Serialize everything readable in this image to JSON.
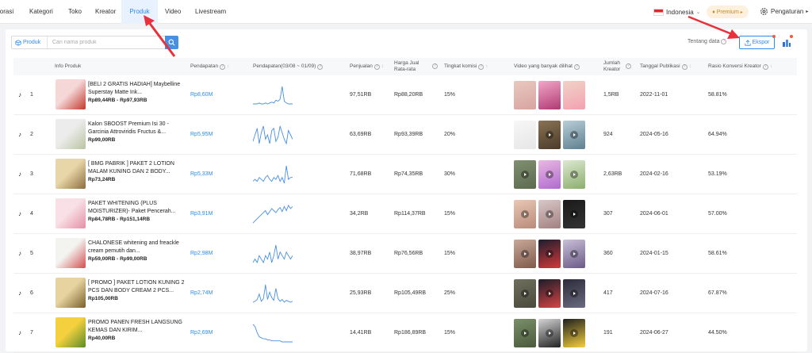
{
  "nav": {
    "items": [
      "lorasi",
      "Kategori",
      "Toko",
      "Kreator",
      "Produk",
      "Video",
      "Livestream"
    ],
    "active": "Produk"
  },
  "topright": {
    "language": "Indonesia",
    "premium": "Premium",
    "settings": "Pengaturan"
  },
  "toolbar": {
    "search_type": "Produk",
    "search_placeholder": "Cari nama produk",
    "about_data": "Tentang data",
    "export": "Ekspor"
  },
  "table": {
    "columns": {
      "info": "Info Produk",
      "revenue": "Pendapatan",
      "revenue_trend": "Pendapatan(03/08 ~ 01/09)",
      "sales": "Penjualan",
      "avg_price_1": "Harga Jual",
      "avg_price_2": "Rata-rata",
      "commission": "Tingkat komisi",
      "videos": "Video yang banyak dilihat",
      "creators_1": "Jumlah",
      "creators_2": "Kreator",
      "publish_date": "Tanggal Publikasi",
      "conversion": "Rasio Konversi Kreator"
    },
    "rows": [
      {
        "rank": "1",
        "title": "[BELI 2 GRATIS HADIAH] Maybelline Superstay Matte Ink...",
        "price_range": "Rp89,44RB - Rp97,93RB",
        "revenue": "Rp8,60M",
        "sales": "97,51RB",
        "avg_price": "Rp88,20RB",
        "commission": "15%",
        "creators": "1,5RB",
        "publish_date": "2022-11-01",
        "conversion": "58.81%",
        "trend": [
          5,
          5,
          5,
          6,
          5,
          5,
          6,
          5,
          6,
          7,
          6,
          9,
          8,
          10,
          24,
          8,
          6,
          5,
          5,
          5
        ]
      },
      {
        "rank": "2",
        "title": "Kalon SBOOST Premium Isi 30 - Garcinia Attroviridis Fructus &...",
        "price_range": "Rp99,00RB",
        "revenue": "Rp5,95M",
        "sales": "63,69RB",
        "avg_price": "Rp93,39RB",
        "commission": "20%",
        "creators": "924",
        "publish_date": "2024-05-16",
        "conversion": "64.94%",
        "trend": [
          8,
          14,
          20,
          6,
          16,
          22,
          10,
          14,
          6,
          18,
          20,
          8,
          12,
          22,
          16,
          10,
          6,
          18,
          14,
          10
        ]
      },
      {
        "rank": "3",
        "title": "[ BMG PABRIK ] PAKET 2 LOTION MALAM KUNING DAN 2 BODY...",
        "price_range": "Rp73,24RB",
        "revenue": "Rp5,33M",
        "sales": "71,68RB",
        "avg_price": "Rp74,35RB",
        "commission": "30%",
        "creators": "2,63RB",
        "publish_date": "2024-02-16",
        "conversion": "53.19%",
        "trend": [
          10,
          11,
          10,
          12,
          11,
          10,
          12,
          13,
          11,
          10,
          12,
          11,
          13,
          10,
          12,
          9,
          18,
          11,
          12,
          12
        ]
      },
      {
        "rank": "4",
        "title": "PAKET WHITENING (PLUS MOISTURIZER)- Paket Pencerah...",
        "price_range": "Rp84,78RB - Rp151,14RB",
        "revenue": "Rp3,91M",
        "sales": "34,2RB",
        "avg_price": "Rp114,37RB",
        "commission": "15%",
        "creators": "307",
        "publish_date": "2024-06-01",
        "conversion": "57.00%",
        "trend": [
          4,
          6,
          8,
          10,
          12,
          14,
          16,
          12,
          15,
          18,
          16,
          14,
          17,
          19,
          15,
          20,
          16,
          21,
          18,
          20
        ]
      },
      {
        "rank": "5",
        "title": "CHALONESE whitening and freackle cream pemutih dan...",
        "price_range": "Rp59,00RB - Rp99,00RB",
        "revenue": "Rp2,98M",
        "sales": "38,97RB",
        "avg_price": "Rp76,56RB",
        "commission": "15%",
        "creators": "360",
        "publish_date": "2024-01-15",
        "conversion": "58.61%",
        "trend": [
          9,
          10,
          9,
          11,
          10,
          9,
          11,
          10,
          12,
          9,
          11,
          14,
          10,
          12,
          11,
          10,
          12,
          11,
          10,
          11
        ]
      },
      {
        "rank": "6",
        "title": "[ PROMO ] PAKET LOTION KUNING 2 PCS DAN BODY CREAM 2 PCS...",
        "price_range": "Rp105,00RB",
        "revenue": "Rp2,74M",
        "sales": "25,93RB",
        "avg_price": "Rp105,49RB",
        "commission": "25%",
        "creators": "417",
        "publish_date": "2024-07-16",
        "conversion": "67.87%",
        "trend": [
          5,
          6,
          8,
          14,
          6,
          9,
          24,
          8,
          16,
          10,
          7,
          20,
          9,
          6,
          8,
          5,
          7,
          6,
          5,
          6
        ]
      },
      {
        "rank": "7",
        "title": "PROMO PANEN FRESH LANGSUNG KEMAS DAN KIRIM...",
        "price_range": "Rp40,00RB",
        "revenue": "Rp2,69M",
        "sales": "14,41RB",
        "avg_price": "Rp186,89RB",
        "commission": "15%",
        "creators": "191",
        "publish_date": "2024-06-27",
        "conversion": "44.50%",
        "trend": [
          20,
          18,
          12,
          8,
          7,
          6,
          6,
          5,
          5,
          4,
          4,
          4,
          4,
          4,
          3,
          3,
          3,
          3,
          3,
          3
        ]
      }
    ]
  },
  "colors": {
    "accent": "#2d8cf0",
    "annotation_arrow": "#e8313a",
    "spark_line": "#4a90e2"
  }
}
